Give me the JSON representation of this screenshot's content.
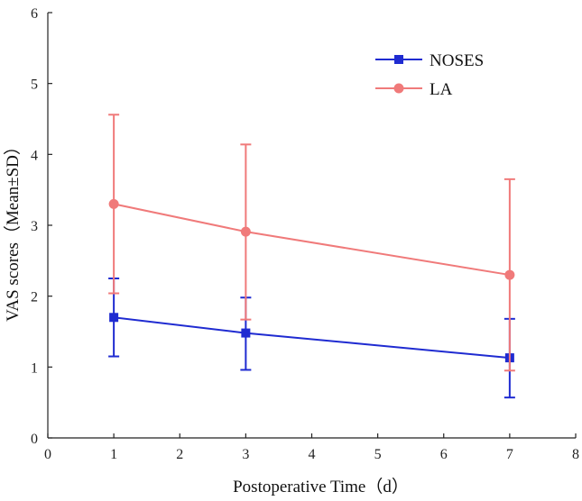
{
  "chart_data": {
    "type": "line",
    "title": "",
    "xlabel": "Postoperative Time（d）",
    "ylabel": "VAS scores（Mean±SD）",
    "xlim": [
      0,
      8
    ],
    "ylim": [
      0,
      6
    ],
    "xticks": [
      "0",
      "1",
      "2",
      "3",
      "4",
      "5",
      "6",
      "7",
      "8"
    ],
    "yticks": [
      "0",
      "1",
      "2",
      "3",
      "4",
      "5",
      "6"
    ],
    "grid": false,
    "legend_position": "top-right",
    "series": [
      {
        "name": "NOSES",
        "color": "#1f2bd1",
        "marker": "square",
        "x": [
          1,
          3,
          7
        ],
        "y": [
          1.7,
          1.48,
          1.13
        ],
        "err_low": [
          1.15,
          0.96,
          0.57
        ],
        "err_high": [
          2.25,
          1.98,
          1.68
        ]
      },
      {
        "name": "LA",
        "color": "#f07a7a",
        "marker": "circle",
        "x": [
          1,
          3,
          7
        ],
        "y": [
          3.3,
          2.91,
          2.3
        ],
        "err_low": [
          2.04,
          1.67,
          0.95
        ],
        "err_high": [
          4.56,
          4.14,
          3.65
        ]
      }
    ]
  }
}
